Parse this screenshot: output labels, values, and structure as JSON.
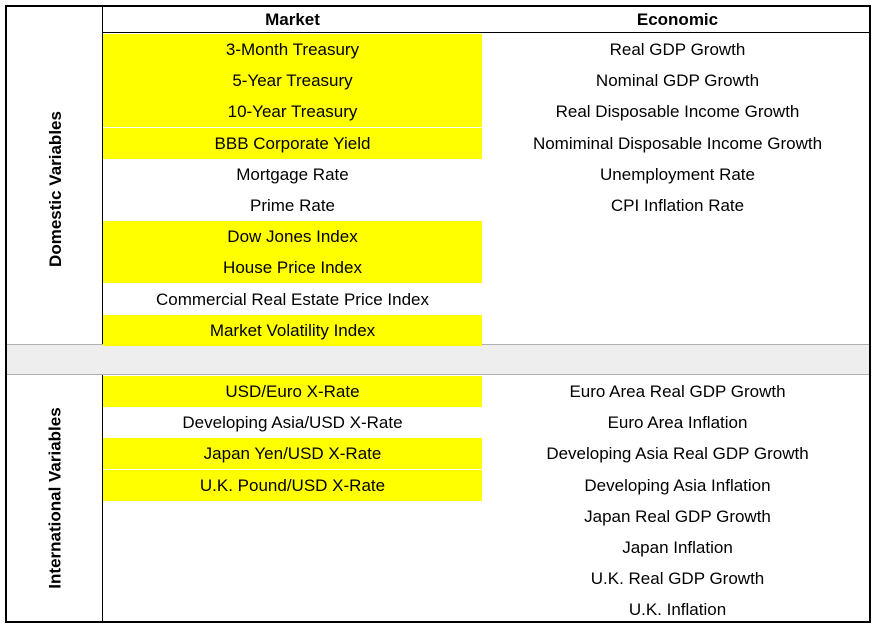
{
  "headers": {
    "market": "Market",
    "economic": "Economic"
  },
  "domestic": {
    "label": "Domestic Variables",
    "market": [
      {
        "text": "3-Month Treasury",
        "highlight": true
      },
      {
        "text": "5-Year Treasury",
        "highlight": true
      },
      {
        "text": "10-Year Treasury",
        "highlight": true
      },
      {
        "text": "BBB Corporate Yield",
        "highlight": true
      },
      {
        "text": "Mortgage Rate",
        "highlight": false
      },
      {
        "text": "Prime Rate",
        "highlight": false
      },
      {
        "text": "Dow Jones Index",
        "highlight": true
      },
      {
        "text": "House Price Index",
        "highlight": true
      },
      {
        "text": "Commercial Real Estate Price Index",
        "highlight": false
      },
      {
        "text": "Market Volatility Index",
        "highlight": true
      }
    ],
    "economic": [
      "Real GDP Growth",
      "Nominal GDP Growth",
      "Real Disposable Income Growth",
      "Nomiminal Disposable Income Growth",
      "Unemployment Rate",
      "CPI Inflation Rate"
    ]
  },
  "international": {
    "label": "International Variables",
    "market": [
      {
        "text": "USD/Euro X-Rate",
        "highlight": true
      },
      {
        "text": "Developing Asia/USD X-Rate",
        "highlight": false
      },
      {
        "text": "Japan Yen/USD X-Rate",
        "highlight": true
      },
      {
        "text": "U.K. Pound/USD X-Rate",
        "highlight": true
      }
    ],
    "economic": [
      "Euro Area Real GDP Growth",
      "Euro Area Inflation",
      "Developing Asia Real GDP Growth",
      "Developing Asia Inflation",
      "Japan Real GDP Growth",
      "Japan Inflation",
      "U.K. Real GDP Growth",
      "U.K. Inflation"
    ]
  },
  "colors": {
    "highlight": "#ffff00",
    "separator": "#eeeeee"
  }
}
